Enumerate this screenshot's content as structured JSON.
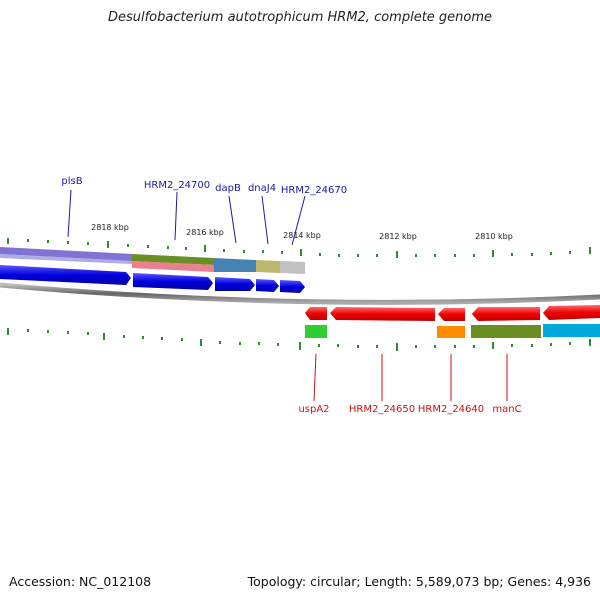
{
  "title": "Desulfobacterium autotrophicum HRM2, complete genome",
  "footer": {
    "accession": "Accession: NC_012108",
    "topology": "Topology: circular; Length: 5,589,073 bp; Genes: 4,936"
  },
  "scale_labels": [
    "2818 kbp",
    "2816 kbp",
    "2814 kbp",
    "2812 kbp",
    "2810 kbp"
  ],
  "top_genes": [
    "plsB",
    "HRM2_24700",
    "dapB",
    "dnaJ4",
    "HRM2_24670"
  ],
  "bottom_genes": [
    "uspA2",
    "HRM2_24650",
    "HRM2_24640",
    "manC"
  ],
  "colors": {
    "forward_cds": "#1a1aee",
    "reverse_cds": "#ee1111",
    "top_label": "#1a1aa0",
    "bottom_label": "#cc1111",
    "tick": "#2e8b2e",
    "backbone": "#888888"
  }
}
